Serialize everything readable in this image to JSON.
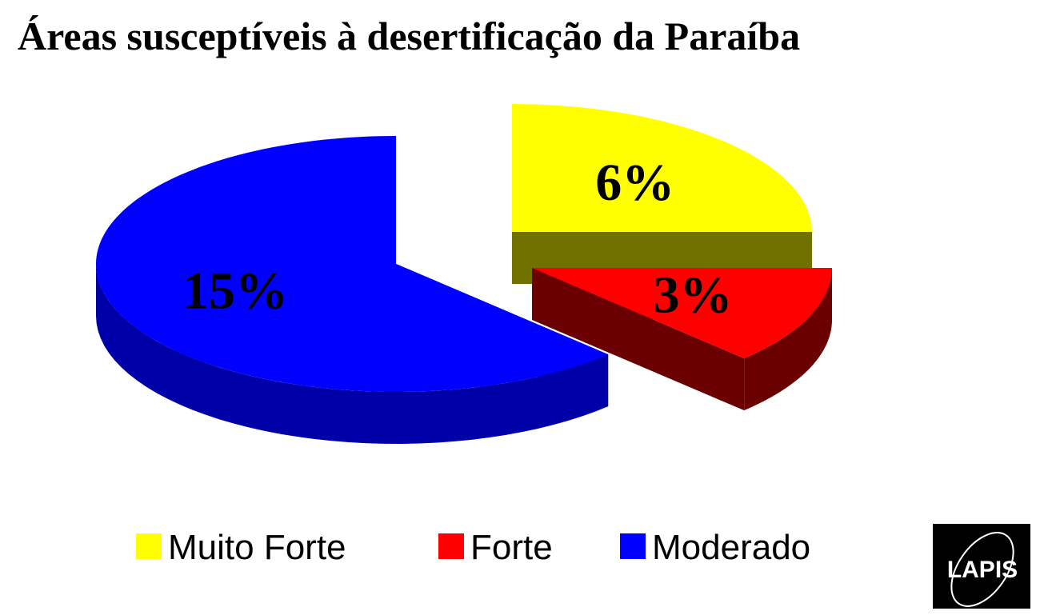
{
  "chart_data": {
    "type": "pie",
    "title": "Áreas susceptíveis à desertificação da Paraíba",
    "categories": [
      "Muito Forte",
      "Forte",
      "Moderado"
    ],
    "values": [
      6,
      3,
      15
    ],
    "value_labels": [
      "6%",
      "3%",
      "15%"
    ],
    "colors": [
      "#ffff00",
      "#ff0000",
      "#0000ff"
    ],
    "side_colors": [
      "#717100",
      "#6b0000",
      "#0000a8"
    ],
    "legend": "bottom"
  },
  "logo": "LAPIS"
}
